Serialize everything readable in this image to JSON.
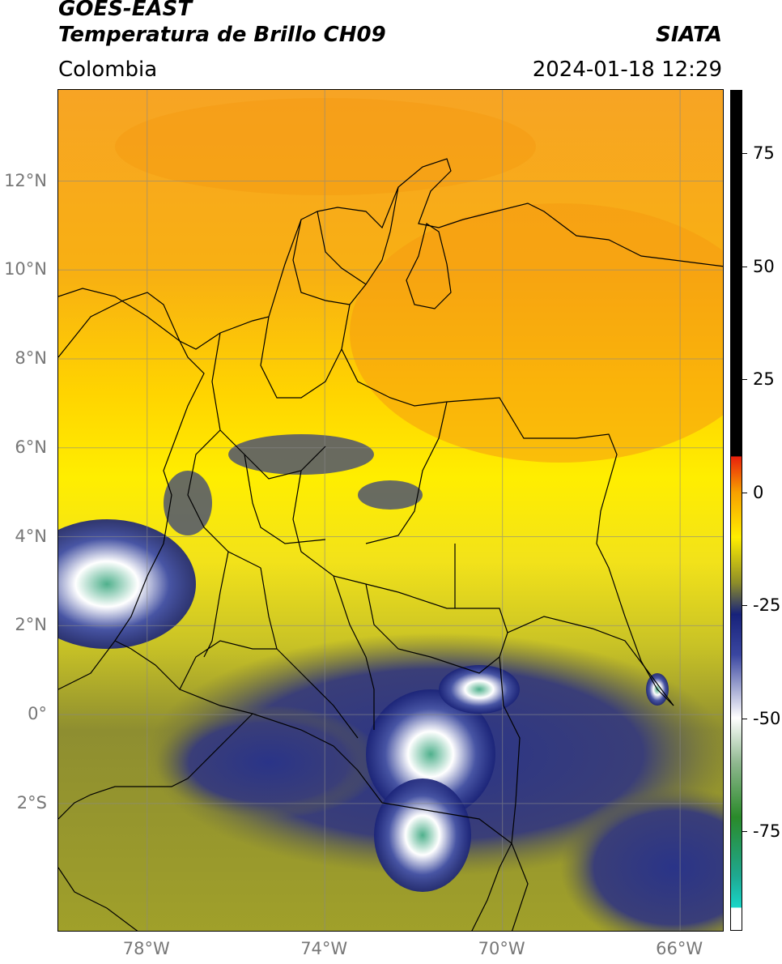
{
  "header": {
    "satellite": "GOES-EAST",
    "product": "Temperatura de Brillo CH09",
    "brand": "SIATA",
    "region": "Colombia",
    "datetime": "2024-01-18 12:29"
  },
  "map": {
    "lat_range": [
      -5,
      14
    ],
    "lon_range": [
      -80,
      -65
    ],
    "lat_labels": [
      "12°N",
      "10°N",
      "8°N",
      "6°N",
      "4°N",
      "2°N",
      "0°",
      "2°S"
    ],
    "lon_labels": [
      "78°W",
      "74°W",
      "70°W",
      "66°W"
    ],
    "gridlines": true
  },
  "colorbar": {
    "range": [
      -97,
      89
    ],
    "tick_labels": [
      "75",
      "50",
      "25",
      "0",
      "-25",
      "-50",
      "-75"
    ],
    "colors": {
      "black": "#000000",
      "red": "#e8200c",
      "orange": "#f7a000",
      "yellow": "#ffee00",
      "olive": "#8e8e28",
      "navy": "#17227a",
      "white": "#ffffff",
      "green": "#2a8a2a",
      "teal": "#19d6c8"
    }
  }
}
